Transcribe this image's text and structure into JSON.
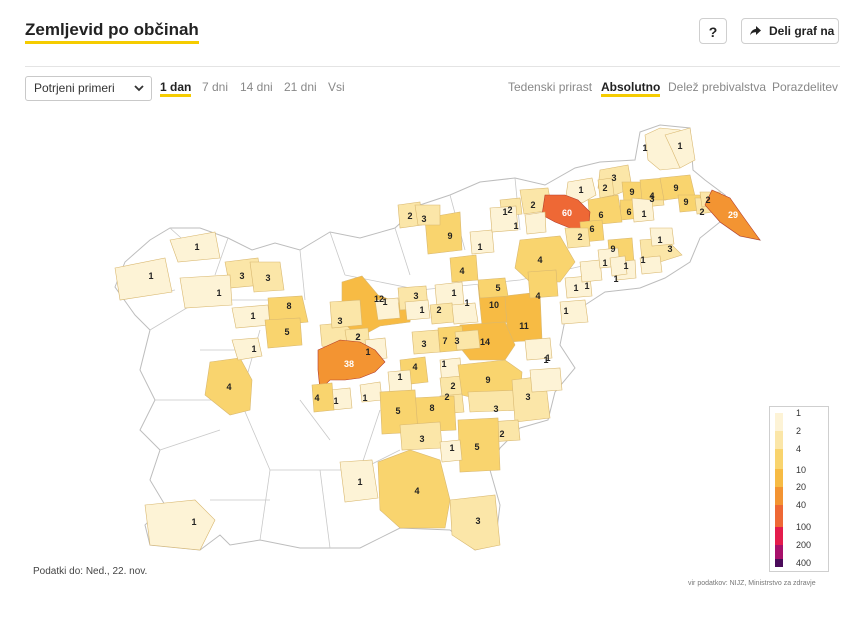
{
  "header": {
    "title": "Zemljevid po občinah",
    "help_label": "?",
    "share_label": "Deli graf na"
  },
  "controls": {
    "dataset_select": "Potrjeni primeri",
    "period_tabs": [
      "1 dan",
      "7 dni",
      "14 dni",
      "21 dni",
      "Vsi"
    ],
    "active_period": "1 dan",
    "mode_tabs": [
      "Tedenski prirast",
      "Absolutno",
      "Delež prebivalstva",
      "Porazdelitev"
    ],
    "active_mode": "Absolutno"
  },
  "legend": {
    "labels": [
      "1",
      "2",
      "4",
      "10",
      "20",
      "40",
      "100",
      "200",
      "400"
    ],
    "colors": [
      "#fdf3d6",
      "#fbe6a8",
      "#f9d46e",
      "#f7bb44",
      "#f39432",
      "#ee6835",
      "#e41c4c",
      "#a8106a",
      "#4a0b5a"
    ]
  },
  "footer": {
    "data_date": "Podatki do: Ned., 22. nov.",
    "source": "vir podatkov: NIJZ, Ministrstvo za zdravje"
  },
  "map": {
    "regions": [
      {
        "v": 1
      },
      {
        "v": 1
      },
      {
        "v": 3
      },
      {
        "v": 1
      },
      {
        "v": 2
      },
      {
        "v": 9
      },
      {
        "v": 3
      },
      {
        "v": 6
      },
      {
        "v": 4
      },
      {
        "v": 9
      },
      {
        "v": 9
      },
      {
        "v": 2
      },
      {
        "v": 6
      },
      {
        "v": 2
      },
      {
        "v": 29
      },
      {
        "v": 2
      },
      {
        "v": 60
      },
      {
        "v": 6
      },
      {
        "v": 2
      },
      {
        "v": 2
      },
      {
        "v": 9
      },
      {
        "v": 1
      },
      {
        "v": 2
      },
      {
        "v": 9
      },
      {
        "v": 4
      },
      {
        "v": 3
      },
      {
        "v": 3
      },
      {
        "v": 1
      },
      {
        "v": 1
      },
      {
        "v": 4
      },
      {
        "v": 4
      },
      {
        "v": 2
      },
      {
        "v": 1
      },
      {
        "v": 1
      },
      {
        "v": 3
      },
      {
        "v": 3
      },
      {
        "v": 1
      },
      {
        "v": 1
      },
      {
        "v": 1
      },
      {
        "v": 8
      },
      {
        "v": 12
      },
      {
        "v": 5
      },
      {
        "v": 10
      },
      {
        "v": 11
      },
      {
        "v": 5
      },
      {
        "v": 3
      },
      {
        "v": 2
      },
      {
        "v": 14
      },
      {
        "v": 1
      },
      {
        "v": 7
      },
      {
        "v": 3
      },
      {
        "v": 38
      },
      {
        "v": 1
      },
      {
        "v": 1
      },
      {
        "v": 4
      },
      {
        "v": 1
      },
      {
        "v": 2
      },
      {
        "v": 9
      },
      {
        "v": 4
      },
      {
        "v": 1
      },
      {
        "v": 2
      },
      {
        "v": 8
      },
      {
        "v": 5
      },
      {
        "v": 3
      },
      {
        "v": 3
      },
      {
        "v": 2
      },
      {
        "v": 3
      },
      {
        "v": 5
      },
      {
        "v": 1
      },
      {
        "v": 4
      },
      {
        "v": 3
      },
      {
        "v": 1
      },
      {
        "v": 1
      },
      {
        "v": 4
      },
      {
        "v": 1
      },
      {
        "v": 1
      },
      {
        "v": 1
      },
      {
        "v": 1
      },
      {
        "v": 1
      },
      {
        "v": 1
      },
      {
        "v": 1
      },
      {
        "v": 1
      },
      {
        "v": 1
      },
      {
        "v": 1
      },
      {
        "v": 3
      },
      {
        "v": 2
      },
      {
        "v": 1
      },
      {
        "v": 1
      },
      {
        "v": 1
      },
      {
        "v": 1
      },
      {
        "v": 3
      },
      {
        "v": 1
      },
      {
        "v": 1
      }
    ]
  }
}
